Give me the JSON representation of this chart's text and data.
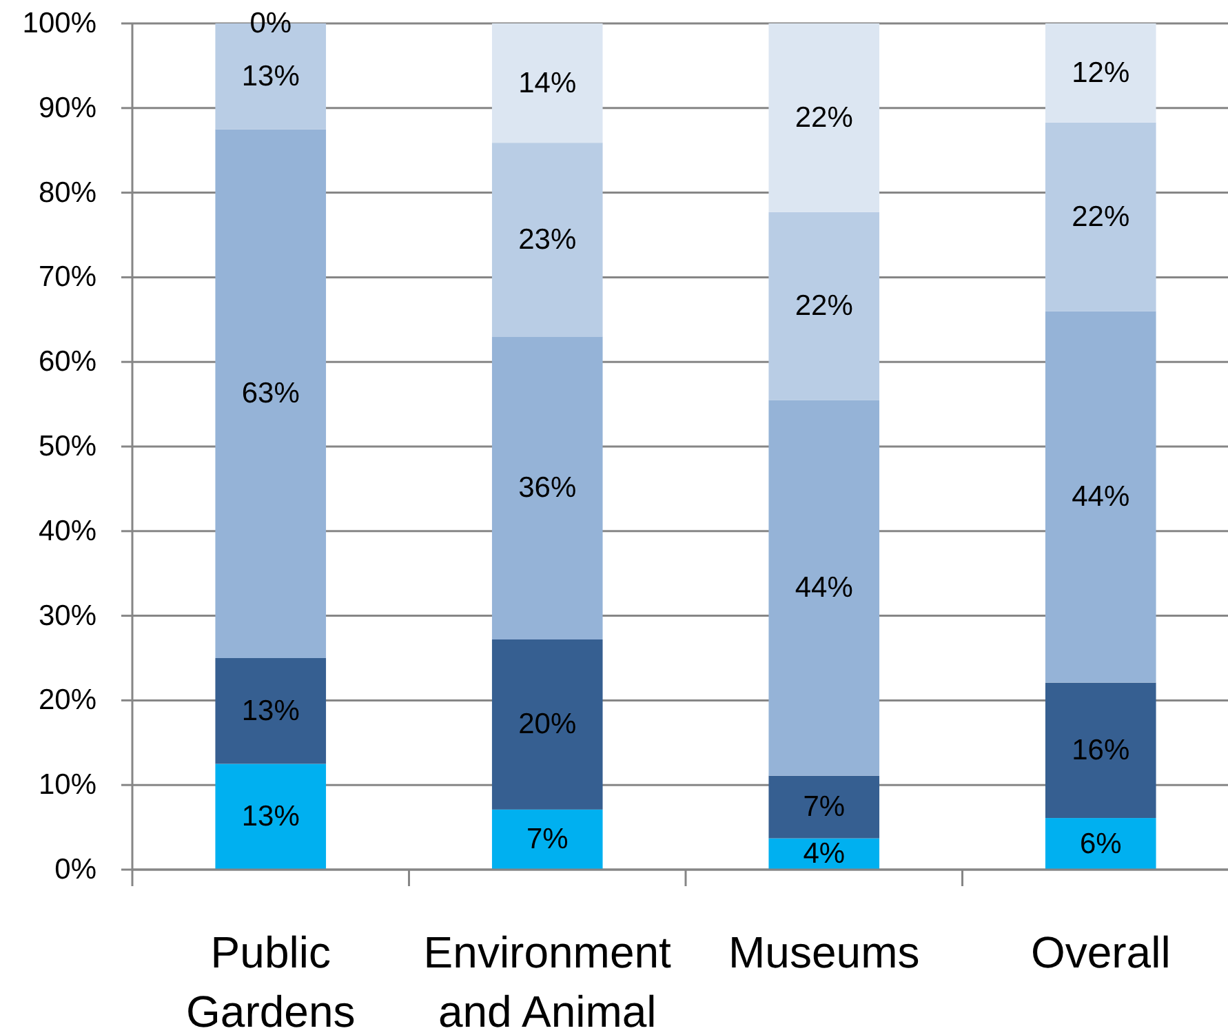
{
  "chart_data": {
    "type": "bar",
    "stacked": true,
    "categories": [
      "Public Gardens",
      "Environment and Animal",
      "Museums",
      "Overall"
    ],
    "series": [
      {
        "color": "#00b0f0",
        "values": [
          12.5,
          7.1,
          3.7,
          6.1
        ],
        "value_labels": [
          "13%",
          "7%",
          "4%",
          "6%"
        ]
      },
      {
        "color": "#365f91",
        "values": [
          12.5,
          20.1,
          7.4,
          16.0
        ],
        "value_labels": [
          "13%",
          "20%",
          "7%",
          "16%"
        ]
      },
      {
        "color": "#95b3d7",
        "values": [
          62.5,
          35.8,
          44.4,
          43.9
        ],
        "value_labels": [
          "63%",
          "36%",
          "44%",
          "44%"
        ]
      },
      {
        "color": "#b9cde5",
        "values": [
          12.5,
          22.9,
          22.2,
          22.3
        ],
        "value_labels": [
          "13%",
          "23%",
          "22%",
          "22%"
        ]
      },
      {
        "color": "#dce6f2",
        "values": [
          0,
          14.1,
          22.3,
          11.7
        ],
        "value_labels": [
          "0%",
          "14%",
          "22%",
          "12%"
        ]
      }
    ],
    "ylim": [
      0,
      100
    ],
    "yticks": [
      {
        "value": 0,
        "label": "0%"
      },
      {
        "value": 10,
        "label": "10%"
      },
      {
        "value": 20,
        "label": "20%"
      },
      {
        "value": 30,
        "label": "30%"
      },
      {
        "value": 40,
        "label": "40%"
      },
      {
        "value": 50,
        "label": "50%"
      },
      {
        "value": 60,
        "label": "60%"
      },
      {
        "value": 70,
        "label": "70%"
      },
      {
        "value": 80,
        "label": "80%"
      },
      {
        "value": 90,
        "label": "90%"
      },
      {
        "value": 100,
        "label": "100%"
      }
    ],
    "grid": "y"
  }
}
